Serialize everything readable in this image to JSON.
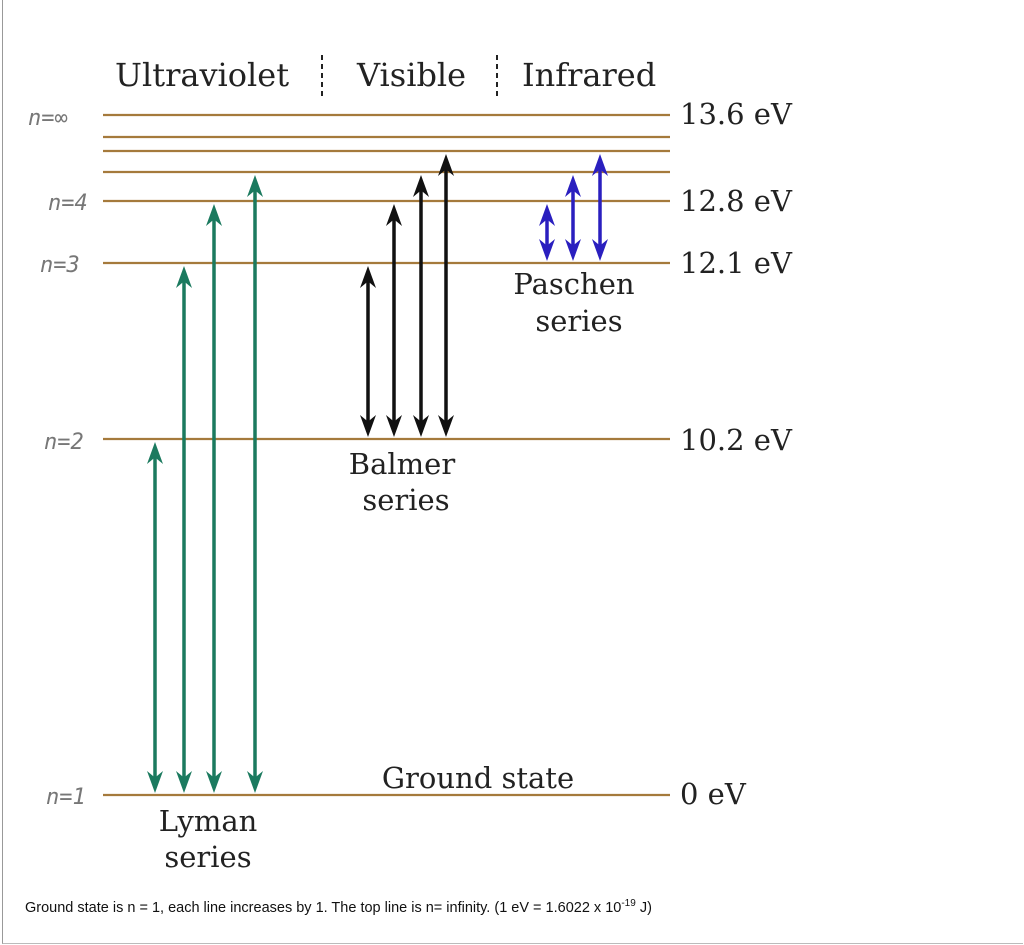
{
  "regions": {
    "ultraviolet": "Ultraviolet",
    "visible": "Visible",
    "infrared": "Infrared"
  },
  "energies": {
    "inf": "13.6 eV",
    "n4": "12.8 eV",
    "n3": "12.1 eV",
    "n2": "10.2 eV",
    "n1": "0 eV"
  },
  "handwritten": {
    "inf": "n=∞",
    "n4": "n=4",
    "n3": "n=3",
    "n2": "n=2",
    "n1": "n=1"
  },
  "series": {
    "lyman": {
      "line1": "Lyman",
      "line2": "series",
      "color": "#1b7a5f",
      "transitions": [
        [
          1,
          2
        ],
        [
          1,
          3
        ],
        [
          1,
          4
        ],
        [
          1,
          5
        ]
      ]
    },
    "balmer": {
      "line1": "Balmer",
      "line2": "series",
      "color": "#111111",
      "transitions": [
        [
          2,
          3
        ],
        [
          2,
          4
        ],
        [
          2,
          5
        ],
        [
          2,
          6
        ]
      ]
    },
    "paschen": {
      "line1": "Paschen",
      "line2": "series",
      "color": "#2a1fbf",
      "transitions": [
        [
          3,
          4
        ],
        [
          3,
          5
        ],
        [
          3,
          6
        ]
      ]
    }
  },
  "ground_label": "Ground state",
  "level_color": "#a57a3c",
  "caption": {
    "text": "Ground state is n = 1, each line increases by 1.  The top line is n= infinity.  (1 eV = 1.6022 x 10",
    "exp": "-19",
    "tail": " J)"
  }
}
